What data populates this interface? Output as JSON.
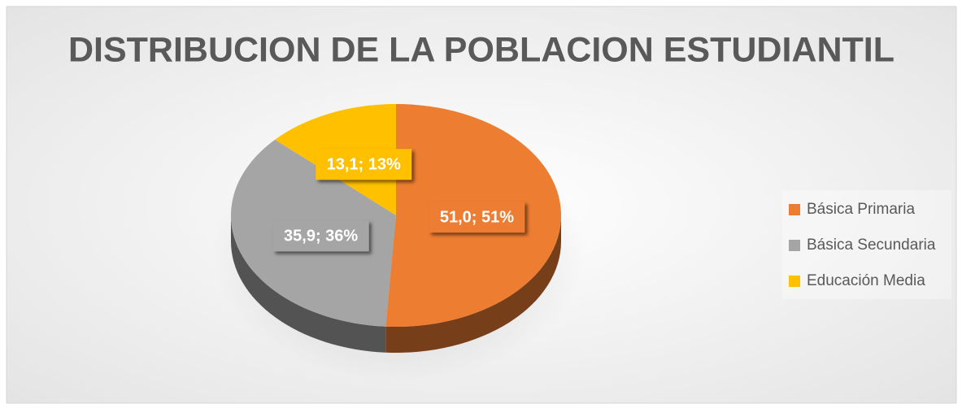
{
  "chart_data": {
    "type": "pie",
    "title": "DISTRIBUCION DE LA POBLACION ESTUDIANTIL",
    "categories": [
      "Básica Primaria",
      "Básica Secundaria",
      "Educación Media"
    ],
    "values": [
      51.0,
      35.9,
      13.1
    ],
    "value_labels": [
      "51,0; 51%",
      "35,9; 36%",
      "13,1; 13%"
    ],
    "colors": [
      "#ed7d31",
      "#a5a5a5",
      "#ffc000"
    ],
    "legend": "right"
  }
}
